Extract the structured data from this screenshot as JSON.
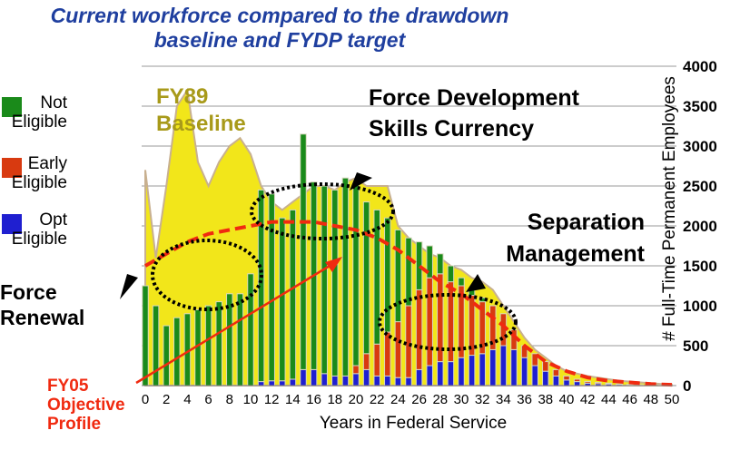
{
  "chart_data": {
    "type": "stacked_bar",
    "title": "Current workforce compared to the drawdown baseline and FYDP target",
    "xlabel": "Years in Federal Service",
    "ylabel": "# Full-Time Permanent Employees",
    "x": [
      0,
      1,
      2,
      3,
      4,
      5,
      6,
      7,
      8,
      9,
      10,
      11,
      12,
      13,
      14,
      15,
      16,
      17,
      18,
      19,
      20,
      21,
      22,
      23,
      24,
      25,
      26,
      27,
      28,
      29,
      30,
      31,
      32,
      33,
      34,
      35,
      36,
      37,
      38,
      39,
      40,
      41,
      42,
      43,
      44,
      45,
      46,
      47,
      48,
      49,
      50
    ],
    "xlim": [
      -0.5,
      50.5
    ],
    "xticks": [
      0,
      2,
      4,
      6,
      8,
      10,
      12,
      14,
      16,
      18,
      20,
      22,
      24,
      26,
      28,
      30,
      32,
      34,
      36,
      38,
      40,
      42,
      44,
      46,
      48,
      50
    ],
    "ylim": [
      0,
      4000
    ],
    "yticks": [
      0,
      500,
      1000,
      1500,
      2000,
      2500,
      3000,
      3500,
      4000
    ],
    "grid": true,
    "series": [
      {
        "name": "Opt Eligible",
        "color": "#1f1fd0",
        "values": [
          0,
          0,
          0,
          0,
          0,
          0,
          0,
          0,
          0,
          0,
          0,
          50,
          60,
          60,
          80,
          200,
          200,
          150,
          120,
          120,
          150,
          200,
          120,
          120,
          100,
          100,
          200,
          250,
          300,
          300,
          350,
          380,
          400,
          450,
          500,
          450,
          350,
          250,
          180,
          120,
          70,
          50,
          30,
          25,
          20,
          15,
          10,
          8,
          5,
          5,
          0
        ]
      },
      {
        "name": "Early Eligible",
        "color": "#d83a10",
        "values": [
          0,
          0,
          0,
          0,
          0,
          0,
          0,
          0,
          0,
          0,
          0,
          0,
          0,
          0,
          0,
          0,
          0,
          0,
          0,
          0,
          100,
          200,
          400,
          550,
          700,
          900,
          1000,
          1100,
          1100,
          1000,
          900,
          750,
          650,
          550,
          400,
          250,
          150,
          150,
          120,
          80,
          50,
          30,
          20,
          15,
          10,
          5,
          5,
          2,
          0,
          0,
          0
        ]
      },
      {
        "name": "Not Eligible",
        "color": "#1a8a1a",
        "values": [
          1250,
          1000,
          750,
          850,
          900,
          950,
          1000,
          1050,
          1150,
          1150,
          1400,
          2400,
          2340,
          2040,
          2120,
          2950,
          2350,
          2350,
          2330,
          2480,
          2300,
          1900,
          1680,
          1430,
          1150,
          850,
          600,
          400,
          250,
          200,
          100,
          70,
          50,
          0,
          0,
          0,
          0,
          0,
          0,
          0,
          0,
          0,
          0,
          0,
          0,
          0,
          0,
          0,
          0,
          0,
          0
        ]
      }
    ],
    "baseline": {
      "name": "FY89 Baseline",
      "color": "#f2e61a",
      "values": [
        2700,
        1600,
        2500,
        3500,
        3700,
        2800,
        2500,
        2800,
        3000,
        3100,
        2900,
        2500,
        2300,
        2200,
        2300,
        2400,
        2500,
        2500,
        2450,
        2550,
        2600,
        2500,
        2500,
        2500,
        2000,
        1850,
        1750,
        1650,
        1600,
        1500,
        1450,
        1350,
        1300,
        1200,
        1000,
        800,
        600,
        450,
        350,
        250,
        180,
        150,
        120,
        100,
        80,
        60,
        50,
        40,
        30,
        20,
        10
      ]
    },
    "objective": {
      "name": "FY05 Objective Profile",
      "color": "#f02a10",
      "x": [
        0,
        2,
        4,
        6,
        8,
        10,
        12,
        14,
        16,
        18,
        20,
        22,
        24,
        26,
        28,
        30,
        32,
        34,
        36,
        38,
        40,
        42,
        44,
        46,
        48,
        50
      ],
      "values": [
        1500,
        1650,
        1800,
        1900,
        1950,
        2000,
        2050,
        2050,
        2050,
        2000,
        1950,
        1850,
        1700,
        1500,
        1300,
        1150,
        950,
        750,
        500,
        300,
        180,
        100,
        60,
        40,
        20,
        10
      ]
    },
    "annotations": [
      "FY89 Baseline",
      "Force Development Skills Currency",
      "Separation Management",
      "Force Renewal"
    ]
  }
}
